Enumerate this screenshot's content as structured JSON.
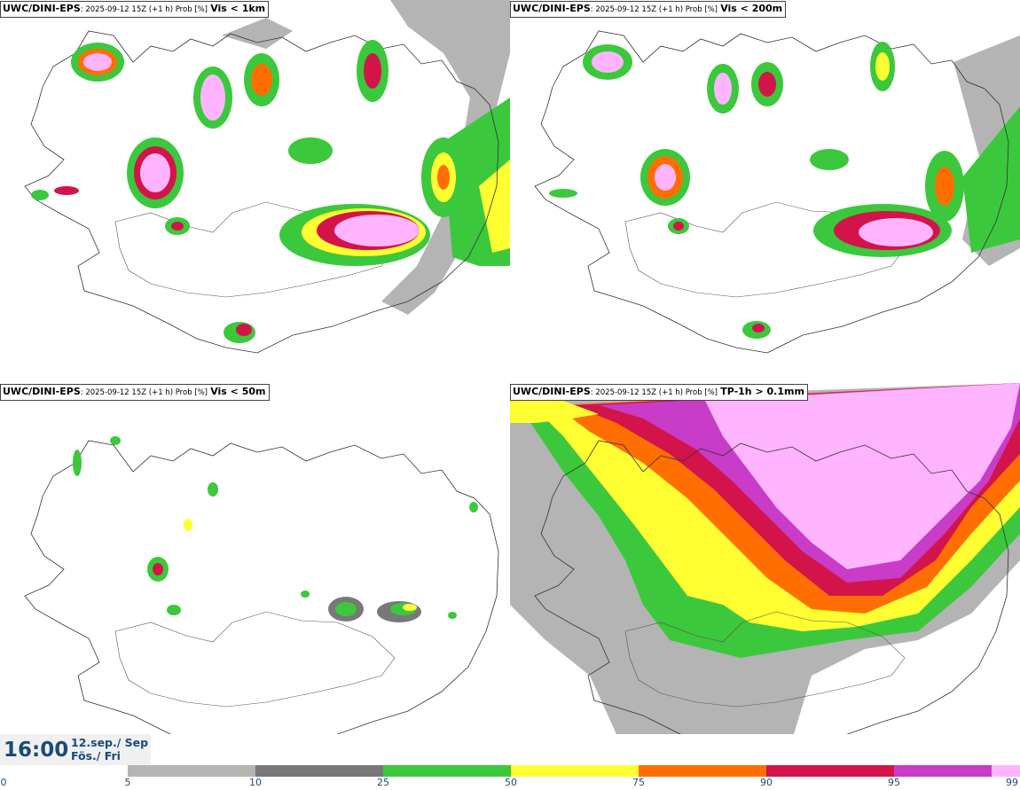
{
  "panels": [
    {
      "model": "UWC/DINI-EPS",
      "meta": ": 2025-09-12 15Z (+1 h) Prob [%]",
      "param": "Vis < 1km"
    },
    {
      "model": "UWC/DINI-EPS",
      "meta": ": 2025-09-12 15Z (+1 h) Prob [%]",
      "param": "Vis < 200m"
    },
    {
      "model": "UWC/DINI-EPS",
      "meta": ": 2025-09-12 15Z (+1 h) Prob [%]",
      "param": "Vis < 50m"
    },
    {
      "model": "UWC/DINI-EPS",
      "meta": ": 2025-09-12 15Z (+1 h) Prob [%]",
      "param": "TP-1h > 0.1mm"
    }
  ],
  "valid_time": {
    "time": "16:00",
    "date_line1": "12.sep./ Sep",
    "date_line2": "Fös./ Fri"
  },
  "colorbar": {
    "ticks": [
      "0",
      "5",
      "10",
      "25",
      "50",
      "75",
      "90",
      "95",
      "99"
    ],
    "colors": {
      "c5_10": "#b4b4b4",
      "c10_25": "#787878",
      "c25_50": "#3cc83c",
      "c50_75": "#ffff32",
      "c75_90": "#ff6e00",
      "c90_95": "#d2144b",
      "c95_99": "#c83cc8",
      "c99": "#ffb4ff"
    }
  }
}
